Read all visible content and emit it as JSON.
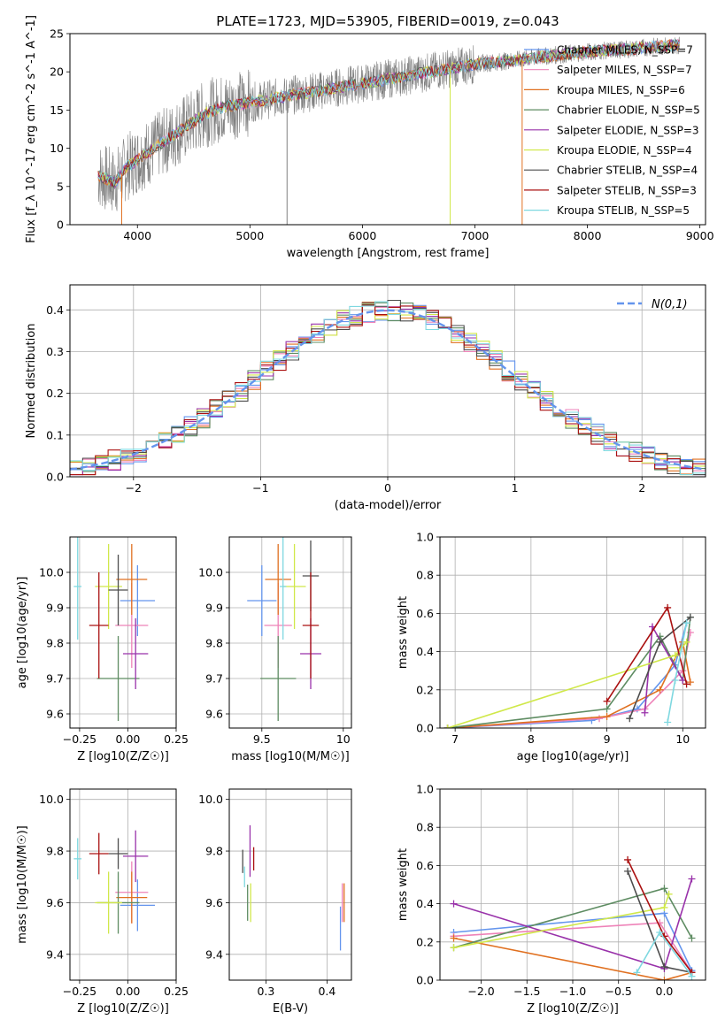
{
  "figure": {
    "title": "PLATE=1723, MJD=53905, FIBERID=0019, z=0.043"
  },
  "models": [
    {
      "name": "Chabrier MILES",
      "nssp": "7",
      "color": "#6495ed"
    },
    {
      "name": "Salpeter MILES",
      "nssp": "7",
      "color": "#ee82b8"
    },
    {
      "name": "Kroupa MILES",
      "nssp": "6",
      "color": "#e07020"
    },
    {
      "name": "Chabrier ELODIE",
      "nssp": "5",
      "color": "#5e8c62"
    },
    {
      "name": "Salpeter ELODIE",
      "nssp": "3",
      "color": "#9932aa"
    },
    {
      "name": "Kroupa ELODIE",
      "nssp": "4",
      "color": "#d0e84a"
    },
    {
      "name": "Chabrier STELIB",
      "nssp": "4",
      "color": "#4d4d4d"
    },
    {
      "name": "Salpeter STELIB",
      "nssp": "3",
      "color": "#aa1111"
    },
    {
      "name": "Kroupa STELIB",
      "nssp": "5",
      "color": "#7fd8e0"
    }
  ],
  "chart_data": [
    {
      "id": "spectrum",
      "type": "line",
      "xlabel": "wavelength [Angstrom, rest frame]",
      "ylabel": "Flux [f_λ 10^-17 erg cm^-2 s^-1 A^-1]",
      "xlim": [
        3400,
        9050
      ],
      "ylim": [
        0,
        25
      ],
      "xticks": [
        4000,
        5000,
        6000,
        7000,
        8000,
        9000
      ],
      "yticks": [
        0,
        5,
        10,
        15,
        20,
        25
      ],
      "grid": false,
      "legend": "top-right",
      "data_color": "#808080",
      "continuum": [
        [
          3650,
          6.5
        ],
        [
          3800,
          5.5
        ],
        [
          3900,
          7.5
        ],
        [
          4000,
          8.5
        ],
        [
          4200,
          10.5
        ],
        [
          4400,
          12.5
        ],
        [
          4600,
          14.5
        ],
        [
          4800,
          15.5
        ],
        [
          5000,
          16
        ],
        [
          5200,
          16.5
        ],
        [
          5400,
          17
        ],
        [
          5600,
          17.5
        ],
        [
          5800,
          18
        ],
        [
          6000,
          18.5
        ],
        [
          6200,
          19
        ],
        [
          6400,
          19.5
        ],
        [
          6600,
          20
        ],
        [
          6800,
          20.5
        ],
        [
          7000,
          21
        ],
        [
          7200,
          21.3
        ],
        [
          7400,
          21.6
        ],
        [
          7600,
          22
        ],
        [
          7800,
          22.3
        ],
        [
          8000,
          22.6
        ],
        [
          8200,
          22.8
        ],
        [
          8400,
          23
        ],
        [
          8600,
          23.3
        ],
        [
          8800,
          23.5
        ]
      ]
    },
    {
      "id": "residuals",
      "type": "line",
      "xlabel": "(data-model)/error",
      "ylabel": "Normed distribution",
      "xlim": [
        -2.5,
        2.5
      ],
      "ylim": [
        0,
        0.46
      ],
      "xticks": [
        -2,
        -1,
        0,
        1,
        2
      ],
      "yticks": [
        0.0,
        0.1,
        0.2,
        0.3,
        0.4
      ],
      "grid": true,
      "legend": "top-right",
      "gauss_label": "N(0,1)",
      "gauss_color": "#6495ed",
      "bin_width": 0.1
    },
    {
      "id": "age_z",
      "type": "scatter",
      "xlabel": "Z [log10(Z/Z☉)]",
      "ylabel": "age  [log10(age/yr)]",
      "xlim": [
        -0.3,
        0.25
      ],
      "ylim": [
        9.56,
        10.1
      ],
      "xticks": [
        -0.25,
        0.0,
        0.25
      ],
      "yticks": [
        9.6,
        9.7,
        9.8,
        9.9,
        10.0
      ],
      "grid": true,
      "points": [
        [
          0.05,
          9.92,
          0.18,
          0.1
        ],
        [
          0.02,
          9.85,
          0.17,
          0.12
        ],
        [
          0.02,
          9.98,
          0.16,
          0.1
        ],
        [
          -0.05,
          9.7,
          0.22,
          0.12
        ],
        [
          0.04,
          9.77,
          0.13,
          0.1
        ],
        [
          -0.1,
          9.96,
          0.14,
          0.12
        ],
        [
          -0.05,
          9.95,
          0.1,
          0.1
        ],
        [
          -0.15,
          9.85,
          0.1,
          0.15
        ],
        [
          -0.26,
          9.96,
          0.04,
          0.15
        ]
      ]
    },
    {
      "id": "age_mass",
      "type": "scatter",
      "xlabel": "mass [log10(M/M☉)]",
      "xlim": [
        9.3,
        10.05
      ],
      "ylim": [
        9.56,
        10.1
      ],
      "xticks": [
        9.5,
        10.0
      ],
      "yticks": [
        9.6,
        9.7,
        9.8,
        9.9,
        10.0
      ],
      "grid": true,
      "points": [
        [
          9.5,
          9.92,
          0.18,
          0.1
        ],
        [
          9.6,
          9.85,
          0.17,
          0.12
        ],
        [
          9.6,
          9.98,
          0.16,
          0.1
        ],
        [
          9.6,
          9.7,
          0.22,
          0.12
        ],
        [
          9.8,
          9.77,
          0.13,
          0.1
        ],
        [
          9.7,
          9.96,
          0.14,
          0.12
        ],
        [
          9.8,
          9.99,
          0.1,
          0.1
        ],
        [
          9.8,
          9.85,
          0.1,
          0.15
        ],
        [
          9.63,
          9.96,
          0.04,
          0.15
        ]
      ]
    },
    {
      "id": "weight_age",
      "type": "line",
      "xlabel": "age  [log10(age/yr)]",
      "ylabel": "mass weight",
      "xlim": [
        6.8,
        10.3
      ],
      "ylim": [
        0,
        1
      ],
      "xticks": [
        7,
        8,
        9,
        10
      ],
      "yticks": [
        0.0,
        0.2,
        0.4,
        0.6,
        0.8,
        1.0
      ],
      "grid": true,
      "series": [
        {
          "points": [
            [
              6.9,
              0
            ],
            [
              8.8,
              0.04
            ],
            [
              9.4,
              0.1
            ],
            [
              9.9,
              0.33
            ],
            [
              10.05,
              0.55
            ]
          ]
        },
        {
          "points": [
            [
              6.9,
              0
            ],
            [
              8.9,
              0.05
            ],
            [
              9.5,
              0.1
            ],
            [
              10.0,
              0.3
            ],
            [
              10.1,
              0.5
            ]
          ]
        },
        {
          "points": [
            [
              6.9,
              0
            ],
            [
              9.0,
              0.06
            ],
            [
              9.7,
              0.2
            ],
            [
              10.0,
              0.45
            ],
            [
              10.1,
              0.24
            ]
          ]
        },
        {
          "points": [
            [
              6.9,
              0
            ],
            [
              9.0,
              0.1
            ],
            [
              9.7,
              0.48
            ],
            [
              10.0,
              0.25
            ],
            [
              10.1,
              0.58
            ]
          ]
        },
        {
          "points": [
            [
              9.5,
              0.08
            ],
            [
              9.6,
              0.53
            ],
            [
              10.0,
              0.25
            ]
          ]
        },
        {
          "points": [
            [
              6.9,
              0
            ],
            [
              9.9,
              0.38
            ],
            [
              10.05,
              0.45
            ]
          ]
        },
        {
          "points": [
            [
              9.3,
              0.05
            ],
            [
              9.7,
              0.45
            ],
            [
              10.1,
              0.58
            ]
          ]
        },
        {
          "points": [
            [
              9.0,
              0.14
            ],
            [
              9.8,
              0.63
            ],
            [
              10.05,
              0.23
            ]
          ]
        },
        {
          "points": [
            [
              9.8,
              0.03
            ],
            [
              9.9,
              0.25
            ],
            [
              10.05,
              0.55
            ]
          ]
        }
      ]
    },
    {
      "id": "mass_z",
      "type": "scatter",
      "xlabel": "Z [log10(Z/Z☉)]",
      "ylabel": "mass [log10(M/M☉)]",
      "xlim": [
        -0.3,
        0.25
      ],
      "ylim": [
        9.3,
        10.04
      ],
      "xticks": [
        -0.25,
        0.0,
        0.25
      ],
      "yticks": [
        9.4,
        9.6,
        9.8,
        10.0
      ],
      "grid": true,
      "points": [
        [
          0.05,
          9.59,
          0.18,
          0.1
        ],
        [
          0.02,
          9.64,
          0.17,
          0.12
        ],
        [
          0.02,
          9.62,
          0.16,
          0.1
        ],
        [
          -0.05,
          9.6,
          0.22,
          0.12
        ],
        [
          0.04,
          9.78,
          0.13,
          0.1
        ],
        [
          -0.1,
          9.6,
          0.14,
          0.12
        ],
        [
          -0.05,
          9.79,
          0.1,
          0.06
        ],
        [
          -0.15,
          9.79,
          0.1,
          0.08
        ],
        [
          -0.26,
          9.77,
          0.04,
          0.08
        ]
      ]
    },
    {
      "id": "mass_ebv",
      "type": "scatter",
      "xlabel": "E(B-V)",
      "xlim": [
        0.24,
        0.44
      ],
      "ylim": [
        9.3,
        10.04
      ],
      "xticks": [
        0.3,
        0.4
      ],
      "yticks": [
        9.4,
        9.6,
        9.8,
        10.0
      ],
      "grid": true,
      "points": [
        [
          0.422,
          9.5,
          0.17
        ],
        [
          0.425,
          9.6,
          0.15
        ],
        [
          0.428,
          9.6,
          0.15
        ],
        [
          0.27,
          9.6,
          0.14
        ],
        [
          0.274,
          9.8,
          0.2
        ],
        [
          0.275,
          9.6,
          0.15
        ],
        [
          0.262,
          9.76,
          0.09
        ],
        [
          0.28,
          9.77,
          0.09
        ],
        [
          0.265,
          9.7,
          0.08
        ]
      ]
    },
    {
      "id": "weight_z",
      "type": "line",
      "xlabel": "Z [log10(Z/Z☉)]",
      "ylabel": "mass weight",
      "xlim": [
        -2.45,
        0.45
      ],
      "ylim": [
        0,
        1
      ],
      "xticks": [
        -2.0,
        -1.5,
        -1.0,
        -0.5,
        0.0
      ],
      "yticks": [
        0.0,
        0.2,
        0.4,
        0.6,
        0.8,
        1.0
      ],
      "grid": true,
      "series": [
        {
          "points": [
            [
              -2.3,
              0.25
            ],
            [
              0.0,
              0.35
            ],
            [
              0.3,
              0.05
            ]
          ]
        },
        {
          "points": [
            [
              -2.3,
              0.23
            ],
            [
              -0.05,
              0.3
            ],
            [
              0.3,
              0.04
            ]
          ]
        },
        {
          "points": [
            [
              -2.3,
              0.22
            ],
            [
              0.0,
              0.0
            ],
            [
              0.3,
              0.04
            ]
          ]
        },
        {
          "points": [
            [
              -2.3,
              0.17
            ],
            [
              0.0,
              0.48
            ],
            [
              0.3,
              0.22
            ]
          ]
        },
        {
          "points": [
            [
              -2.3,
              0.4
            ],
            [
              0.0,
              0.06
            ],
            [
              0.3,
              0.53
            ]
          ]
        },
        {
          "points": [
            [
              -2.3,
              0.17
            ],
            [
              0.0,
              0.38
            ],
            [
              0.05,
              0.45
            ]
          ]
        },
        {
          "points": [
            [
              -0.4,
              0.57
            ],
            [
              0.0,
              0.07
            ],
            [
              0.3,
              0.04
            ]
          ]
        },
        {
          "points": [
            [
              -0.4,
              0.63
            ],
            [
              0.0,
              0.23
            ],
            [
              0.3,
              0.04
            ]
          ]
        },
        {
          "points": [
            [
              -0.3,
              0.04
            ],
            [
              -0.05,
              0.25
            ],
            [
              0.3,
              0.02
            ]
          ]
        }
      ]
    }
  ]
}
